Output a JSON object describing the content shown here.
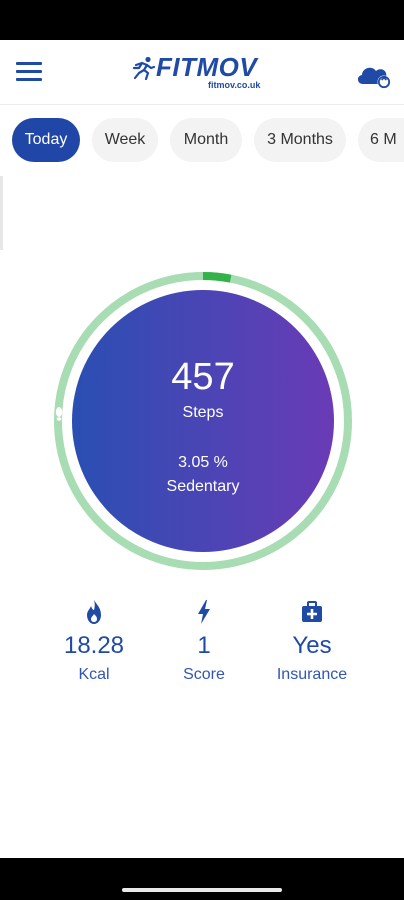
{
  "header": {
    "logo_text": "FITMOV",
    "logo_sub": "fitmov.co.uk",
    "menu_icon": "hamburger-menu-icon",
    "sync_icon": "cloud-sync-icon"
  },
  "tabs": [
    {
      "label": "Today",
      "active": true
    },
    {
      "label": "Week",
      "active": false
    },
    {
      "label": "Month",
      "active": false
    },
    {
      "label": "3 Months",
      "active": false
    },
    {
      "label": "6 M",
      "active": false
    }
  ],
  "activity": {
    "steps_value": "457",
    "steps_label": "Steps",
    "percent": "3.05 %",
    "level": "Sedentary",
    "progress_fraction": 0.0305
  },
  "stats": [
    {
      "icon": "flame-icon",
      "value": "18.28",
      "label": "Kcal"
    },
    {
      "icon": "lightning-icon",
      "value": "1",
      "label": "Score"
    },
    {
      "icon": "medical-kit-icon",
      "value": "Yes",
      "label": "Insurance"
    }
  ],
  "colors": {
    "brand": "#1f4aa6",
    "active_tab": "#2046a8",
    "ring_track": "#a8dcb3",
    "ring_progress": "#33b24a",
    "gradient_start": "#2a4fb3",
    "gradient_end": "#6a3bb6"
  }
}
